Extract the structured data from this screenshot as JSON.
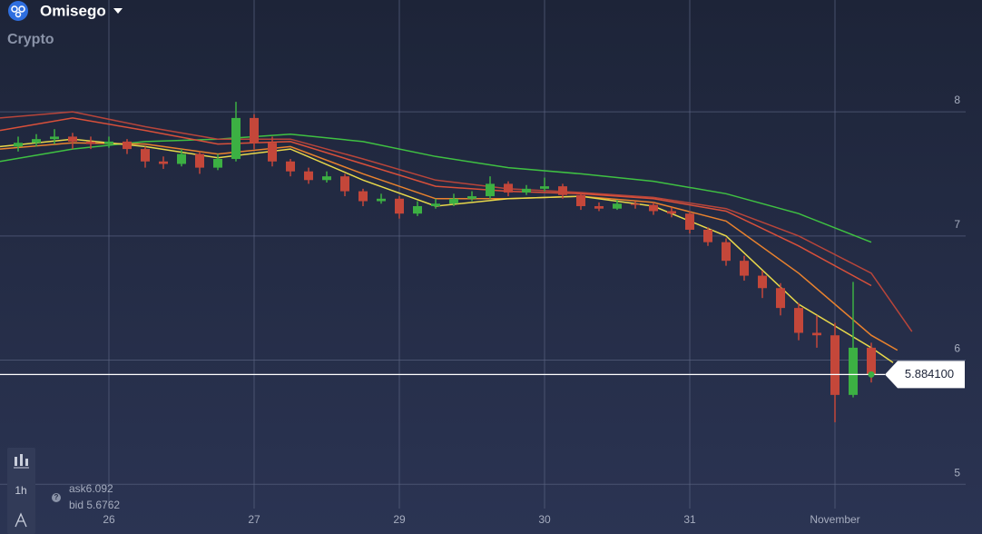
{
  "header": {
    "asset": "Omisego",
    "category": "Crypto"
  },
  "toolbar": {
    "interval": "1h"
  },
  "quote": {
    "ask": "ask6.092",
    "bid": "bid 5.6762"
  },
  "chart_data": {
    "type": "candlestick",
    "xlim": [
      -0.75,
      5.9
    ],
    "ylim": [
      4.6,
      8.9
    ],
    "xticks": [
      {
        "value": 0,
        "label": "26"
      },
      {
        "value": 1,
        "label": "27"
      },
      {
        "value": 2,
        "label": "29"
      },
      {
        "value": 3,
        "label": "30"
      },
      {
        "value": 4,
        "label": "31"
      },
      {
        "value": 5,
        "label": "November"
      }
    ],
    "yticks": [
      5,
      6,
      7,
      8
    ],
    "grid": true,
    "up_color": "#3cb043",
    "down_color": "#c4473a",
    "candles": {
      "x": [
        -0.625,
        -0.5,
        -0.375,
        -0.25,
        -0.125,
        0,
        0.125,
        0.25,
        0.375,
        0.5,
        0.625,
        0.75,
        0.875,
        1,
        1.125,
        1.25,
        1.375,
        1.5,
        1.625,
        1.75,
        1.875,
        2,
        2.125,
        2.25,
        2.375,
        2.5,
        2.625,
        2.75,
        2.875,
        3,
        3.125,
        3.25,
        3.375,
        3.5,
        3.625,
        3.75,
        3.875,
        4,
        4.125,
        4.25,
        4.375,
        4.5,
        4.625,
        4.75,
        4.875,
        5,
        5.125,
        5.25
      ],
      "open": [
        7.72,
        7.75,
        7.78,
        7.8,
        7.76,
        7.74,
        7.76,
        7.7,
        7.6,
        7.58,
        7.66,
        7.55,
        7.62,
        7.95,
        7.75,
        7.6,
        7.52,
        7.45,
        7.48,
        7.36,
        7.28,
        7.3,
        7.18,
        7.24,
        7.26,
        7.3,
        7.32,
        7.42,
        7.35,
        7.38,
        7.4,
        7.33,
        7.24,
        7.22,
        7.26,
        7.25,
        7.2,
        7.18,
        7.05,
        6.95,
        6.8,
        6.68,
        6.58,
        6.42,
        6.22,
        6.2,
        5.72,
        6.1
      ],
      "high": [
        7.8,
        7.82,
        7.86,
        7.83,
        7.8,
        7.8,
        7.78,
        7.72,
        7.64,
        7.7,
        7.68,
        7.66,
        8.08,
        7.98,
        7.8,
        7.62,
        7.55,
        7.52,
        7.5,
        7.38,
        7.34,
        7.32,
        7.28,
        7.3,
        7.34,
        7.36,
        7.48,
        7.44,
        7.41,
        7.47,
        7.42,
        7.35,
        7.27,
        7.29,
        7.28,
        7.27,
        7.23,
        7.2,
        7.07,
        6.98,
        6.84,
        6.72,
        6.62,
        6.46,
        6.36,
        6.3,
        6.63,
        6.14
      ],
      "low": [
        7.68,
        7.72,
        7.74,
        7.7,
        7.7,
        7.71,
        7.66,
        7.55,
        7.54,
        7.56,
        7.5,
        7.53,
        7.6,
        7.7,
        7.56,
        7.48,
        7.42,
        7.43,
        7.32,
        7.24,
        7.26,
        7.14,
        7.16,
        7.22,
        7.24,
        7.28,
        7.3,
        7.32,
        7.33,
        7.36,
        7.3,
        7.21,
        7.2,
        7.21,
        7.22,
        7.17,
        7.15,
        7.02,
        6.92,
        6.76,
        6.64,
        6.5,
        6.36,
        6.16,
        6.1,
        5.5,
        5.7,
        5.82
      ],
      "close": [
        7.75,
        7.78,
        7.8,
        7.76,
        7.74,
        7.76,
        7.7,
        7.6,
        7.58,
        7.66,
        7.55,
        7.62,
        7.95,
        7.75,
        7.6,
        7.52,
        7.45,
        7.48,
        7.36,
        7.28,
        7.3,
        7.18,
        7.24,
        7.26,
        7.3,
        7.32,
        7.42,
        7.35,
        7.38,
        7.4,
        7.33,
        7.24,
        7.22,
        7.26,
        7.25,
        7.2,
        7.18,
        7.05,
        6.95,
        6.8,
        6.68,
        6.58,
        6.42,
        6.22,
        6.2,
        5.72,
        6.1,
        5.884
      ]
    },
    "series": [
      {
        "color": "#3fc142",
        "x": [
          -0.75,
          -0.25,
          0.25,
          0.75,
          1.25,
          1.75,
          2.25,
          2.75,
          3.25,
          3.75,
          4.25,
          4.75,
          5.25
        ],
        "values": [
          7.6,
          7.7,
          7.76,
          7.78,
          7.82,
          7.76,
          7.64,
          7.55,
          7.5,
          7.44,
          7.34,
          7.18,
          6.95
        ]
      },
      {
        "color": "#b8453a",
        "x": [
          -0.75,
          -0.25,
          0.25,
          0.75,
          1.25,
          1.75,
          2.25,
          2.75,
          3.25,
          3.75,
          4.25,
          4.75,
          5.25,
          5.53
        ],
        "values": [
          7.95,
          8.0,
          7.88,
          7.78,
          7.78,
          7.62,
          7.45,
          7.38,
          7.35,
          7.31,
          7.22,
          7.0,
          6.7,
          6.23
        ]
      },
      {
        "color": "#d9503a",
        "x": [
          -0.75,
          -0.25,
          0.25,
          0.75,
          1.25,
          1.75,
          2.25,
          2.75,
          3.25,
          3.75,
          4.25,
          4.75,
          5.25
        ],
        "values": [
          7.85,
          7.95,
          7.85,
          7.74,
          7.76,
          7.58,
          7.4,
          7.36,
          7.34,
          7.3,
          7.2,
          6.92,
          6.6
        ]
      },
      {
        "color": "#e9822e",
        "x": [
          -0.75,
          -0.25,
          0.25,
          0.75,
          1.25,
          1.75,
          2.25,
          2.75,
          3.25,
          3.75,
          4.25,
          4.75,
          5.25,
          5.43
        ],
        "values": [
          7.7,
          7.75,
          7.74,
          7.66,
          7.72,
          7.5,
          7.3,
          7.3,
          7.32,
          7.27,
          7.12,
          6.7,
          6.2,
          6.08
        ]
      },
      {
        "color": "#e8d84a",
        "x": [
          -0.75,
          -0.25,
          0.25,
          0.75,
          1.25,
          1.75,
          2.25,
          2.75,
          3.25,
          3.75,
          4.25,
          4.75,
          5.25,
          5.4
        ],
        "values": [
          7.72,
          7.78,
          7.72,
          7.63,
          7.7,
          7.45,
          7.24,
          7.3,
          7.32,
          7.24,
          7.0,
          6.45,
          6.1,
          5.98
        ]
      }
    ],
    "price_line": {
      "value": 5.8841,
      "label": "5.884100"
    }
  }
}
